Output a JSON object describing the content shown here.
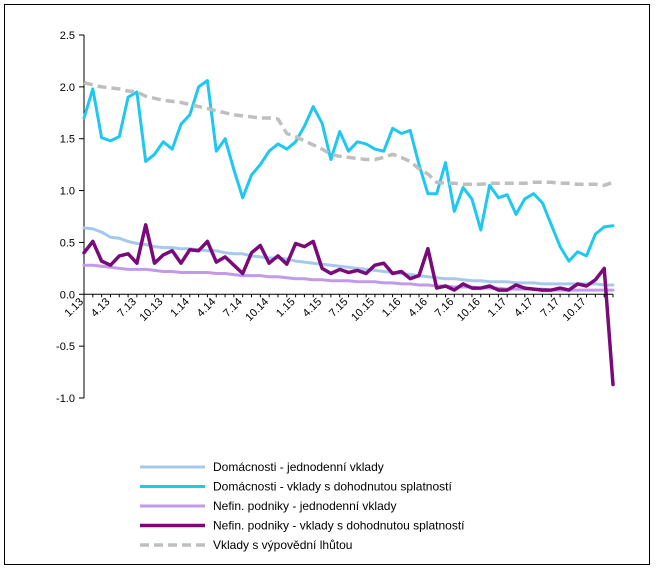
{
  "chart_data": {
    "type": "line",
    "title": "",
    "xlabel": "",
    "ylabel": "",
    "ylim": [
      -1.0,
      2.5
    ],
    "y_ticks": [
      2.5,
      2.0,
      1.5,
      1.0,
      0.5,
      0.0,
      -0.5,
      -1.0
    ],
    "y_tick_labels": [
      "2.5",
      "2.0",
      "1.5",
      "1.0",
      "0.5",
      "0.0",
      "-0.5",
      "-1.0"
    ],
    "x_tick_labels": [
      "1.13",
      "4.13",
      "7.13",
      "10.13",
      "1.14",
      "4.14",
      "7.14",
      "10.14",
      "1.15",
      "4.15",
      "7.15",
      "10.15",
      "1.16",
      "4.16",
      "7.16",
      "10.16",
      "1.17",
      "4.17",
      "7.17",
      "10.17"
    ],
    "x_tick_step": 3,
    "n_points": 61,
    "grid": false,
    "legend_position": "bottom",
    "series": [
      {
        "name": "Domácnosti - jednodenní vklady",
        "color": "#a6c8ec",
        "dash": "solid",
        "width": 3,
        "values": [
          0.64,
          0.63,
          0.6,
          0.55,
          0.54,
          0.51,
          0.49,
          0.48,
          0.46,
          0.45,
          0.45,
          0.44,
          0.44,
          0.43,
          0.42,
          0.42,
          0.4,
          0.39,
          0.39,
          0.37,
          0.36,
          0.35,
          0.35,
          0.34,
          0.32,
          0.31,
          0.3,
          0.29,
          0.28,
          0.27,
          0.26,
          0.25,
          0.24,
          0.23,
          0.22,
          0.21,
          0.2,
          0.19,
          0.18,
          0.17,
          0.16,
          0.15,
          0.15,
          0.14,
          0.13,
          0.13,
          0.12,
          0.12,
          0.12,
          0.11,
          0.11,
          0.11,
          0.1,
          0.1,
          0.1,
          0.1,
          0.1,
          0.1,
          0.1,
          0.09,
          0.09
        ]
      },
      {
        "name": "Domácnosti - vklady s dohodnutou splatností",
        "color": "#1ec8f0",
        "dash": "solid",
        "width": 3,
        "values": [
          1.7,
          1.98,
          1.51,
          1.48,
          1.52,
          1.9,
          1.95,
          1.28,
          1.35,
          1.47,
          1.4,
          1.64,
          1.73,
          2.0,
          2.06,
          1.38,
          1.5,
          1.2,
          0.93,
          1.15,
          1.25,
          1.38,
          1.45,
          1.4,
          1.47,
          1.62,
          1.81,
          1.65,
          1.3,
          1.57,
          1.38,
          1.47,
          1.45,
          1.4,
          1.38,
          1.6,
          1.55,
          1.58,
          1.25,
          0.97,
          0.97,
          1.27,
          0.8,
          1.03,
          0.92,
          0.62,
          1.05,
          0.93,
          0.96,
          0.77,
          0.92,
          0.97,
          0.88,
          0.67,
          0.46,
          0.32,
          0.41,
          0.37,
          0.58,
          0.65,
          0.66
        ]
      },
      {
        "name": "Nefin. podniky - jednodenní vklady",
        "color": "#c39ae8",
        "dash": "solid",
        "width": 3,
        "values": [
          0.28,
          0.28,
          0.27,
          0.26,
          0.25,
          0.24,
          0.24,
          0.24,
          0.23,
          0.22,
          0.22,
          0.21,
          0.21,
          0.21,
          0.21,
          0.2,
          0.2,
          0.19,
          0.18,
          0.18,
          0.18,
          0.17,
          0.17,
          0.16,
          0.15,
          0.15,
          0.14,
          0.14,
          0.13,
          0.13,
          0.13,
          0.12,
          0.12,
          0.12,
          0.11,
          0.11,
          0.1,
          0.1,
          0.09,
          0.09,
          0.08,
          0.08,
          0.07,
          0.07,
          0.07,
          0.06,
          0.06,
          0.06,
          0.05,
          0.05,
          0.05,
          0.05,
          0.05,
          0.04,
          0.04,
          0.04,
          0.04,
          0.04,
          0.04,
          0.04,
          0.04
        ]
      },
      {
        "name": "Nefin. podniky - vklady s dohodnutou splatností",
        "color": "#7a0a7a",
        "dash": "solid",
        "width": 3.5,
        "values": [
          0.4,
          0.51,
          0.32,
          0.28,
          0.37,
          0.39,
          0.3,
          0.67,
          0.3,
          0.38,
          0.42,
          0.3,
          0.43,
          0.42,
          0.51,
          0.31,
          0.36,
          0.28,
          0.2,
          0.4,
          0.47,
          0.3,
          0.37,
          0.29,
          0.49,
          0.46,
          0.51,
          0.25,
          0.2,
          0.24,
          0.21,
          0.23,
          0.2,
          0.28,
          0.3,
          0.2,
          0.22,
          0.15,
          0.18,
          0.44,
          0.06,
          0.08,
          0.04,
          0.1,
          0.06,
          0.06,
          0.08,
          0.04,
          0.04,
          0.09,
          0.06,
          0.05,
          0.04,
          0.04,
          0.06,
          0.04,
          0.1,
          0.08,
          0.14,
          0.25,
          -0.87
        ]
      },
      {
        "name": "Vklady s výpovědní lhůtou",
        "color": "#bfbfbf",
        "dash": "dashed",
        "width": 3.5,
        "values": [
          2.04,
          2.02,
          2.0,
          1.99,
          1.98,
          1.96,
          1.95,
          1.91,
          1.89,
          1.87,
          1.86,
          1.85,
          1.83,
          1.81,
          1.79,
          1.77,
          1.75,
          1.73,
          1.72,
          1.71,
          1.7,
          1.7,
          1.69,
          1.55,
          1.52,
          1.48,
          1.44,
          1.4,
          1.35,
          1.33,
          1.32,
          1.31,
          1.3,
          1.3,
          1.32,
          1.35,
          1.32,
          1.28,
          1.21,
          1.16,
          1.08,
          1.07,
          1.07,
          1.06,
          1.06,
          1.06,
          1.07,
          1.07,
          1.07,
          1.07,
          1.07,
          1.08,
          1.08,
          1.08,
          1.07,
          1.07,
          1.06,
          1.06,
          1.06,
          1.05,
          1.08
        ]
      }
    ]
  }
}
